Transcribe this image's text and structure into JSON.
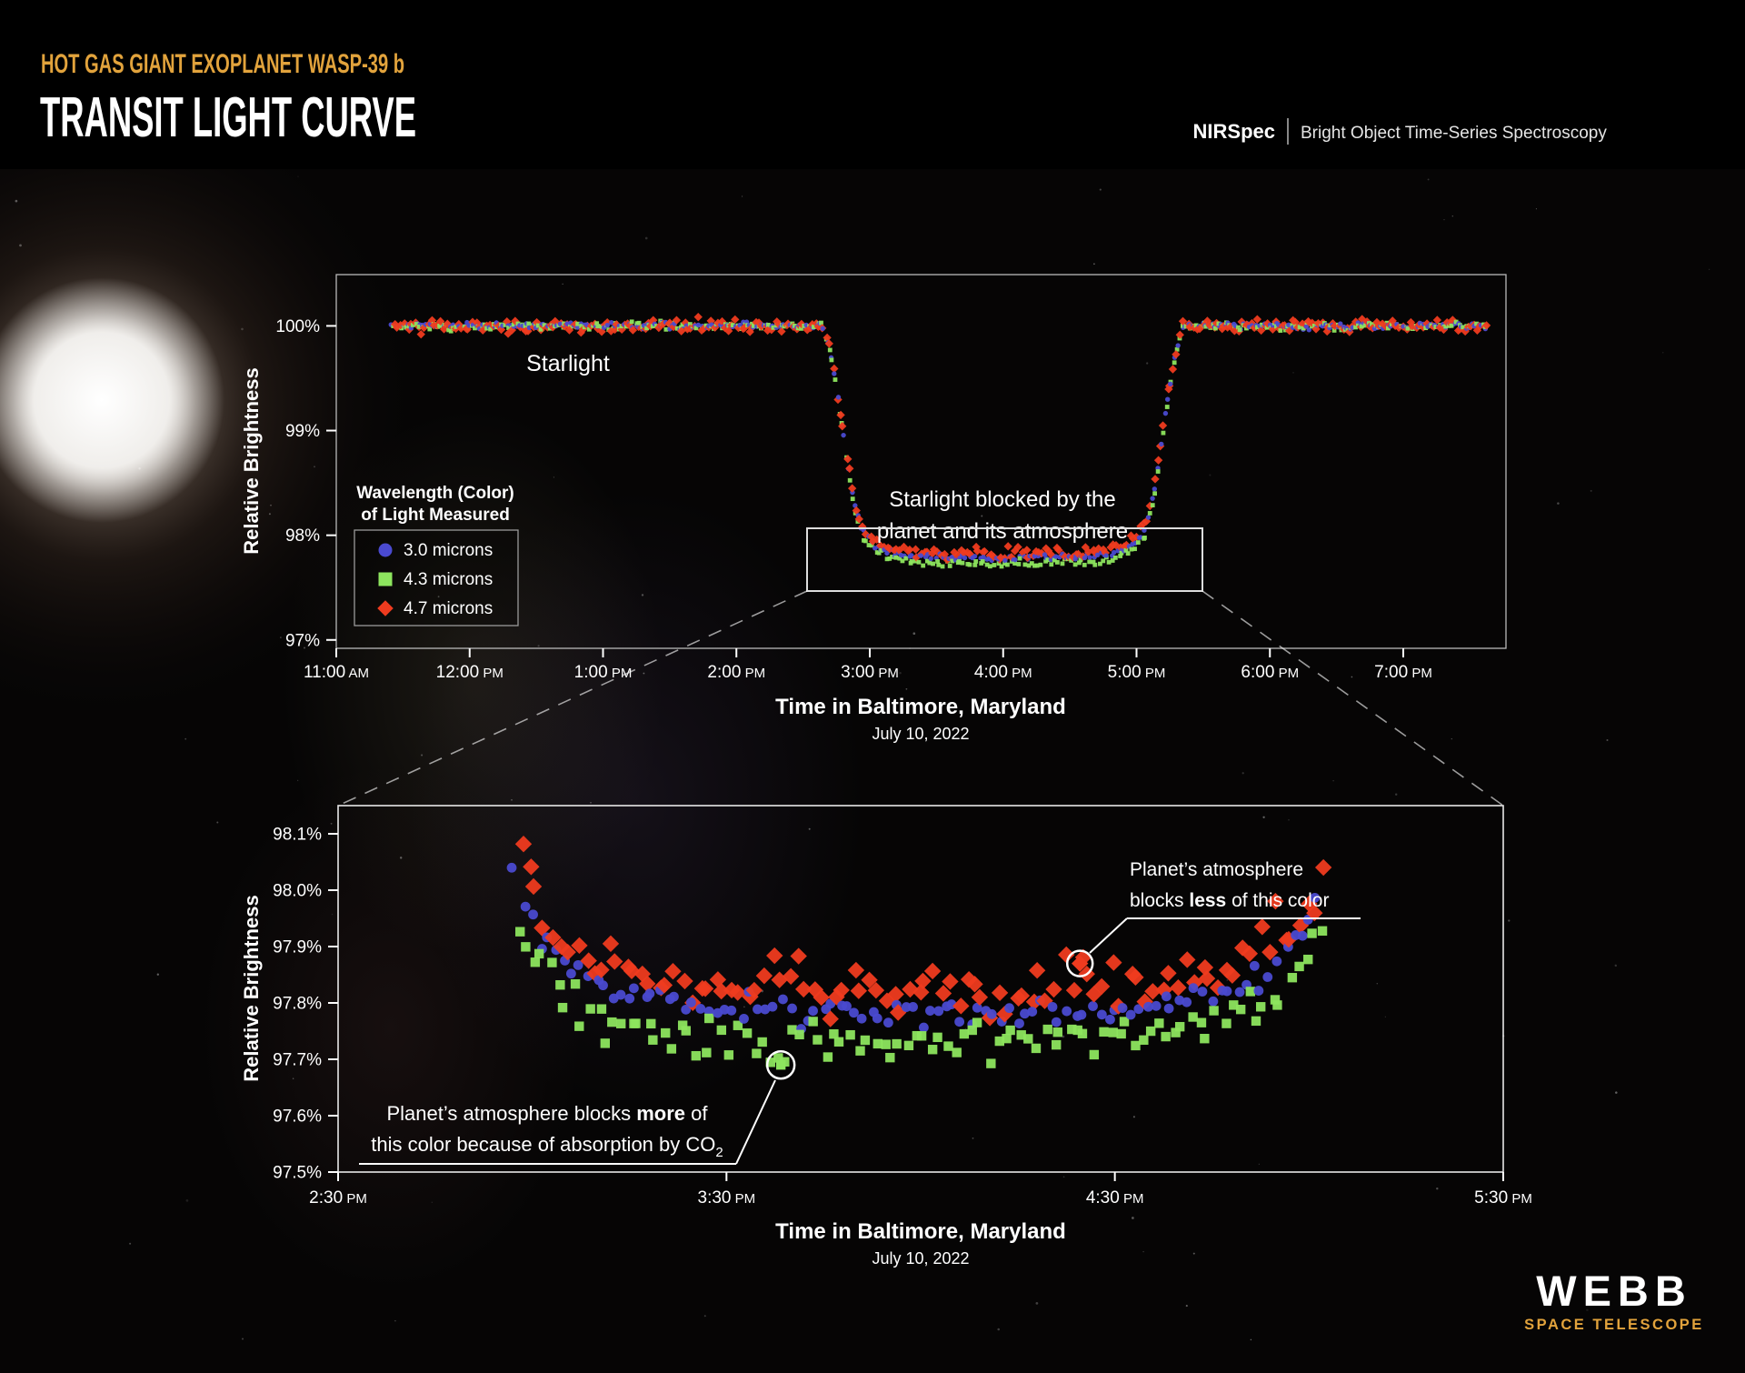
{
  "header": {
    "subtitle": "HOT GAS GIANT EXOPLANET WASP-39 b",
    "title": "TRANSIT LIGHT CURVE",
    "instrument": "NIRSpec",
    "mode": "Bright Object Time-Series Spectroscopy"
  },
  "legend": {
    "title_line1": "Wavelength (Color)",
    "title_line2": "of Light Measured",
    "items": [
      {
        "label": "3.0 microns",
        "marker": "circle",
        "color": "#4a4ad0"
      },
      {
        "label": "4.3 microns",
        "marker": "square",
        "color": "#8de55e"
      },
      {
        "label": "4.7 microns",
        "marker": "diamond",
        "color": "#ef3b1f"
      }
    ]
  },
  "chart_data": [
    {
      "type": "scatter",
      "name": "full-transit-light-curve",
      "xlabel": "Time in Baltimore, Maryland",
      "xlabel_sub": "July 10, 2022",
      "ylabel": "Relative Brightness",
      "x_ticks": [
        {
          "hour": 11.0,
          "label": "11:00",
          "suffix": "AM"
        },
        {
          "hour": 12.0,
          "label": "12:00",
          "suffix": "PM"
        },
        {
          "hour": 13.0,
          "label": "1:00",
          "suffix": "PM"
        },
        {
          "hour": 14.0,
          "label": "2:00",
          "suffix": "PM"
        },
        {
          "hour": 15.0,
          "label": "3:00",
          "suffix": "PM"
        },
        {
          "hour": 16.0,
          "label": "4:00",
          "suffix": "PM"
        },
        {
          "hour": 17.0,
          "label": "5:00",
          "suffix": "PM"
        },
        {
          "hour": 18.0,
          "label": "6:00",
          "suffix": "PM"
        },
        {
          "hour": 19.0,
          "label": "7:00",
          "suffix": "PM"
        }
      ],
      "y_ticks": [
        {
          "pct": 100,
          "label": "100%"
        },
        {
          "pct": 99,
          "label": "99%"
        },
        {
          "pct": 98,
          "label": "98%"
        },
        {
          "pct": 97,
          "label": "97%"
        }
      ],
      "x_range_hours": [
        11.0,
        19.77
      ],
      "y_range_pct": [
        96.92,
        100.49
      ],
      "grid": false,
      "series": [
        {
          "name": "3.0 microns",
          "marker": "circle",
          "color": "#4a4ad0",
          "offset_pct": 0.005,
          "noise_pct": 0.016
        },
        {
          "name": "4.3 microns",
          "marker": "square",
          "color": "#8de55e",
          "offset_pct": -0.048,
          "noise_pct": 0.018
        },
        {
          "name": "4.7 microns",
          "marker": "diamond",
          "color": "#ef3b1f",
          "offset_pct": 0.045,
          "noise_pct": 0.03
        }
      ],
      "transit_model": {
        "baseline_pct": 100.0,
        "ingress_hours": [
          14.63,
          14.97
        ],
        "egress_hours": [
          17.03,
          17.37
        ],
        "floor_pct": 97.775,
        "limb_quadratic_pct": 0.05,
        "limb_edge_pct": 0.17,
        "center_hour": 16.0,
        "half_width_hours": 1.03,
        "data_start_hour": 11.42,
        "data_end_hour": 19.64,
        "cadence_hours": 0.0253
      },
      "annotations": {
        "starlight": "Starlight",
        "blocked_line1": "Starlight blocked by the",
        "blocked_line2": "planet and its atmosphere"
      }
    },
    {
      "type": "scatter",
      "name": "transit-floor-zoom",
      "xlabel": "Time in Baltimore, Maryland",
      "xlabel_sub": "July 10, 2022",
      "ylabel": "Relative Brightness",
      "x_ticks": [
        {
          "hour": 14.5,
          "label": "2:30",
          "suffix": "PM"
        },
        {
          "hour": 15.5,
          "label": "3:30",
          "suffix": "PM"
        },
        {
          "hour": 16.5,
          "label": "4:30",
          "suffix": "PM"
        },
        {
          "hour": 17.5,
          "label": "5:30",
          "suffix": "PM"
        }
      ],
      "y_ticks": [
        {
          "pct": 98.1,
          "label": "98.1%"
        },
        {
          "pct": 98.0,
          "label": "98.0%"
        },
        {
          "pct": 97.9,
          "label": "97.9%"
        },
        {
          "pct": 97.8,
          "label": "97.8%"
        },
        {
          "pct": 97.7,
          "label": "97.7%"
        },
        {
          "pct": 97.6,
          "label": "97.6%"
        },
        {
          "pct": 97.5,
          "label": "97.5%"
        }
      ],
      "x_range_hours": [
        14.5,
        17.5
      ],
      "y_range_pct": [
        97.5,
        98.15
      ],
      "grid": false,
      "series": [
        {
          "name": "3.0 microns",
          "marker": "circle",
          "color": "#4a4ad0",
          "offset_pct": 0.005,
          "noise_pct": 0.013
        },
        {
          "name": "4.3 microns",
          "marker": "square",
          "color": "#8de55e",
          "offset_pct": -0.048,
          "noise_pct": 0.019
        },
        {
          "name": "4.7 microns",
          "marker": "diamond",
          "color": "#ef3b1f",
          "offset_pct": 0.045,
          "noise_pct": 0.028
        }
      ],
      "transit_model": {
        "floor_pct": 97.775,
        "limb_quadratic_pct": 0.05,
        "limb_edge_pct": 0.17,
        "center_hour": 16.0,
        "half_width_hours": 1.03,
        "data_start_hour": 14.955,
        "data_end_hour": 17.04,
        "cadence_hours": 0.0209
      },
      "highlight_points": [
        {
          "series": "4.3 microns",
          "marker": "square",
          "color": "#8de55e",
          "hour": 15.64,
          "pct": 97.69,
          "ring_r": 15
        },
        {
          "series": "4.7 microns",
          "marker": "diamond",
          "color": "#ef3b1f",
          "hour": 16.41,
          "pct": 97.87,
          "ring_r": 14
        }
      ],
      "annotations": {
        "less_line1": "Planet’s atmosphere",
        "less_line2_pre": "blocks ",
        "less_bold": "less",
        "less_line2_post": " of this color",
        "more_line1_pre": "Planet’s atmosphere blocks ",
        "more_bold": "more",
        "more_line1_post": " of",
        "more_line2_pre": "this color because of absorption by CO",
        "more_sub": "2"
      }
    }
  ],
  "footer": {
    "logo_title": "WEBB",
    "logo_subtitle": "SPACE TELESCOPE"
  },
  "colors": {
    "accent_gold": "#E2A33C",
    "frame_gray": "#c8c8c8",
    "background": "#060505"
  }
}
